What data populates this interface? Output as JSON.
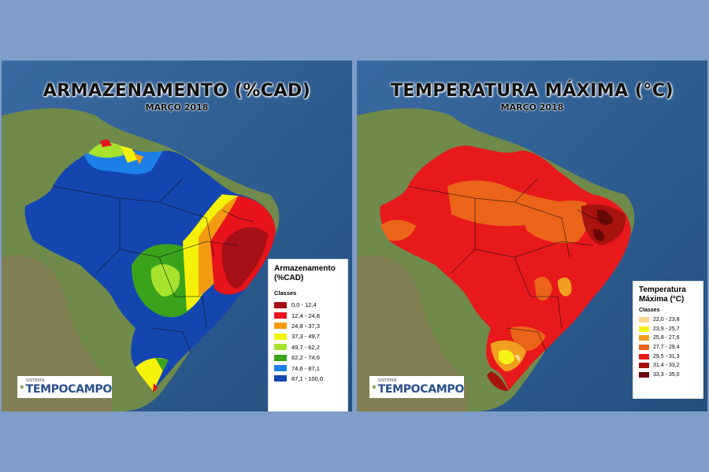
{
  "left_map": {
    "title": "ARMAZENAMENTO (%CAD)",
    "subtitle": "MARÇO 2018",
    "legend": {
      "title": "Armazenamento (%CAD)",
      "classes_label": "Classes",
      "items": [
        {
          "label": "0,0 - 12,4",
          "color": "#a50f15"
        },
        {
          "label": "12,4 - 24,8",
          "color": "#e8131b"
        },
        {
          "label": "24,8 - 37,3",
          "color": "#f39c12"
        },
        {
          "label": "37,3 - 49,7",
          "color": "#f5f20a"
        },
        {
          "label": "49,7 - 62,2",
          "color": "#a6e22e"
        },
        {
          "label": "62,2 - 74,6",
          "color": "#3aa31b"
        },
        {
          "label": "74,6 - 87,1",
          "color": "#1d7fe8"
        },
        {
          "label": "87,1 - 100,0",
          "color": "#1446b0"
        }
      ]
    },
    "logo": {
      "small": "SISTEMA",
      "big": "TEMPOCAMPO"
    }
  },
  "right_map": {
    "title": "TEMPERATURA MÁXIMA (°C)",
    "subtitle": "MARÇO 2018",
    "legend": {
      "title": "Temperatura Máxima (°C)",
      "classes_label": "Classes",
      "items": [
        {
          "label": "22,0 - 23,8",
          "color": "#fbd58c"
        },
        {
          "label": "23,9 - 25,7",
          "color": "#f7f317"
        },
        {
          "label": "25,8 - 27,6",
          "color": "#f0a01e"
        },
        {
          "label": "27,7 - 29,4",
          "color": "#ec6419"
        },
        {
          "label": "29,5 - 31,3",
          "color": "#e8191b"
        },
        {
          "label": "31,4 - 33,2",
          "color": "#a8120f"
        },
        {
          "label": "33,3 - 35,0",
          "color": "#6b0706"
        }
      ]
    },
    "logo": {
      "small": "SISTEMA",
      "big": "TEMPOCAMPO"
    }
  },
  "colors": {
    "ocean": "#2f5d93",
    "land": "#6f8a4a",
    "background": "#7f9dc8"
  }
}
